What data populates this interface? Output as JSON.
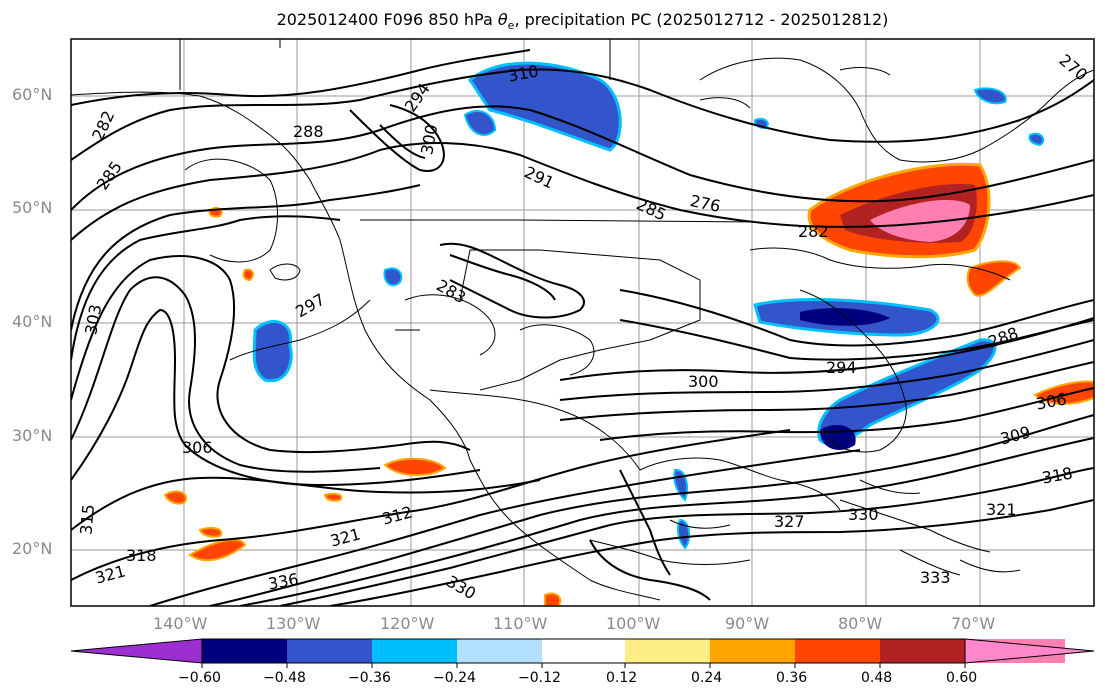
{
  "title": {
    "prefix": "2025012400 F096 850 hPa ",
    "symbol": "θ",
    "subscript": "e",
    "suffix": ", precipitation PC (2025012712 - 2025012812)"
  },
  "map": {
    "lat_labels": [
      "60°N",
      "50°N",
      "40°N",
      "30°N",
      "20°N"
    ],
    "lon_labels": [
      "140°W",
      "130°W",
      "120°W",
      "110°W",
      "100°W",
      "90°W",
      "80°W",
      "70°W"
    ],
    "grid": true,
    "contour_labels": [
      "282",
      "285",
      "303",
      "306",
      "315",
      "318",
      "321",
      "288",
      "294",
      "300",
      "297",
      "283",
      "291",
      "285",
      "276",
      "282",
      "270",
      "300",
      "294",
      "288",
      "306",
      "309",
      "318",
      "321",
      "327",
      "330",
      "336",
      "312",
      "321",
      "333",
      "310",
      "330"
    ]
  },
  "colorbar": {
    "ticks": [
      "−0.60",
      "−0.48",
      "−0.36",
      "−0.24",
      "−0.12",
      "0.12",
      "0.24",
      "0.36",
      "0.48",
      "0.60"
    ],
    "colors": [
      "#9b2fd1",
      "#00007f",
      "#3355cc",
      "#00bfff",
      "#b3e0ff",
      "#ffffff",
      "#ffee88",
      "#ffa500",
      "#ff4500",
      "#b22222",
      "#ff80b0",
      "#ff88cc"
    ]
  }
}
